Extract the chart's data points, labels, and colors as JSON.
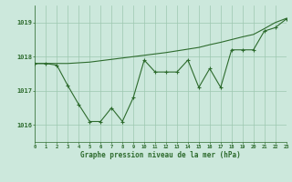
{
  "x": [
    0,
    1,
    2,
    3,
    4,
    5,
    6,
    7,
    8,
    9,
    10,
    11,
    12,
    13,
    14,
    15,
    16,
    17,
    18,
    19,
    20,
    21,
    22,
    23
  ],
  "y_detail": [
    1017.8,
    1017.8,
    1017.75,
    1017.15,
    1016.6,
    1016.1,
    1016.1,
    1016.5,
    1016.1,
    1016.8,
    1017.9,
    1017.55,
    1017.55,
    1017.55,
    1017.9,
    1017.1,
    1017.65,
    1017.1,
    1018.2,
    1018.2,
    1018.2,
    1018.75,
    1018.85,
    1019.1
  ],
  "y_trend": [
    1017.8,
    1017.8,
    1017.8,
    1017.8,
    1017.82,
    1017.84,
    1017.88,
    1017.92,
    1017.96,
    1018.0,
    1018.04,
    1018.08,
    1018.12,
    1018.17,
    1018.22,
    1018.27,
    1018.35,
    1018.42,
    1018.5,
    1018.58,
    1018.65,
    1018.82,
    1019.0,
    1019.12
  ],
  "line_color": "#2d6b2d",
  "bg_color": "#cce8dc",
  "grid_color": "#9ec8b0",
  "xlabel": "Graphe pression niveau de la mer (hPa)",
  "ylim": [
    1015.5,
    1019.5
  ],
  "xlim": [
    0,
    23
  ],
  "yticks": [
    1016,
    1017,
    1018,
    1019
  ],
  "xticks": [
    0,
    1,
    2,
    3,
    4,
    5,
    6,
    7,
    8,
    9,
    10,
    11,
    12,
    13,
    14,
    15,
    16,
    17,
    18,
    19,
    20,
    21,
    22,
    23
  ]
}
